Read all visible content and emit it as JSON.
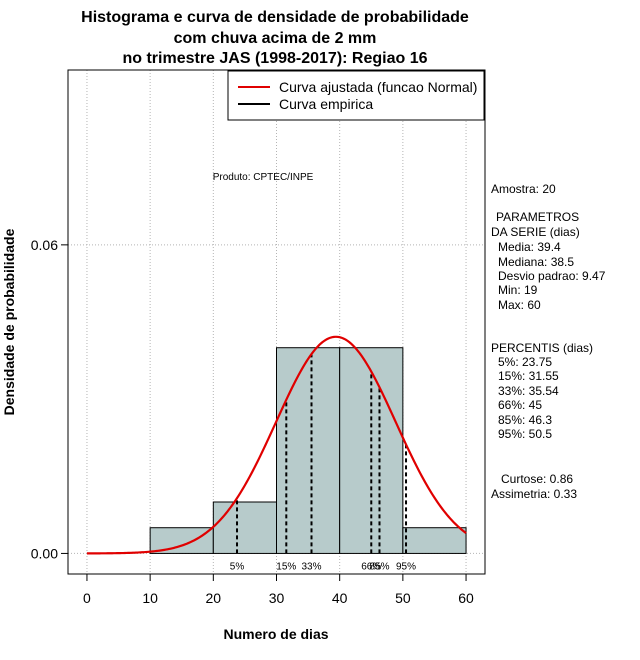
{
  "chart_data": {
    "type": "bar",
    "title_lines": [
      "Histograma e curva de densidade de probabilidade",
      "com chuva acima de 2 mm",
      "no trimestre JAS (1998-2017): Regiao 16"
    ],
    "xlabel": "Numero de dias",
    "ylabel": "Densidade de probabilidade",
    "xlim": [
      -3,
      63
    ],
    "ylim": [
      -0.004,
      0.094
    ],
    "x_ticks": [
      0,
      10,
      20,
      30,
      40,
      50,
      60
    ],
    "y_ticks": [
      0.0,
      0.06
    ],
    "y_tick_labels": [
      "0.00",
      "0.06"
    ],
    "x_grid": [
      0,
      10,
      20,
      30,
      40,
      50,
      60
    ],
    "y_grid": [
      0.0,
      0.06
    ],
    "grid": true,
    "bins": [
      {
        "x0": 10,
        "x1": 20,
        "density": 0.005
      },
      {
        "x0": 20,
        "x1": 30,
        "density": 0.01
      },
      {
        "x0": 30,
        "x1": 40,
        "density": 0.04
      },
      {
        "x0": 40,
        "x1": 50,
        "density": 0.04
      },
      {
        "x0": 50,
        "x1": 60,
        "density": 0.005
      }
    ],
    "bar_color": "#b7cbcb",
    "normal_curve": {
      "mean": 39.4,
      "sd": 9.47,
      "x_range": [
        0,
        60
      ],
      "color": "#e00000"
    },
    "percentile_lines": [
      {
        "label": "5%",
        "x": 23.75
      },
      {
        "label": "15%",
        "x": 31.55
      },
      {
        "label": "33%",
        "x": 35.54
      },
      {
        "label": "66%",
        "x": 45
      },
      {
        "label": "85%",
        "x": 46.3
      },
      {
        "label": "95%",
        "x": 50.5
      }
    ],
    "legend": {
      "position": "top-right",
      "entries": [
        {
          "label": "Curva ajustada (funcao Normal)",
          "color": "#e00000"
        },
        {
          "label": "Curva empirica",
          "color": "#000000"
        }
      ]
    },
    "annotation": "Produto: CPTEC/INPE",
    "stats": {
      "amostra": "Amostra: 20",
      "param_title_1": "PARAMETROS",
      "param_title_2": "DA SERIE (dias)",
      "media": "Media: 39.4",
      "mediana": "Mediana: 38.5",
      "desvio": "Desvio padrao: 9.47",
      "min": "Min: 19",
      "max": "Max: 60",
      "pct_title": "PERCENTIS (dias)",
      "p5": "5%: 23.75",
      "p15": "15%: 31.55",
      "p33": "33%: 35.54",
      "p66": "66%: 45",
      "p85": "85%: 46.3",
      "p95": "95%: 50.5",
      "curtose": "Curtose: 0.86",
      "assimetria": "Assimetria: 0.33"
    }
  }
}
